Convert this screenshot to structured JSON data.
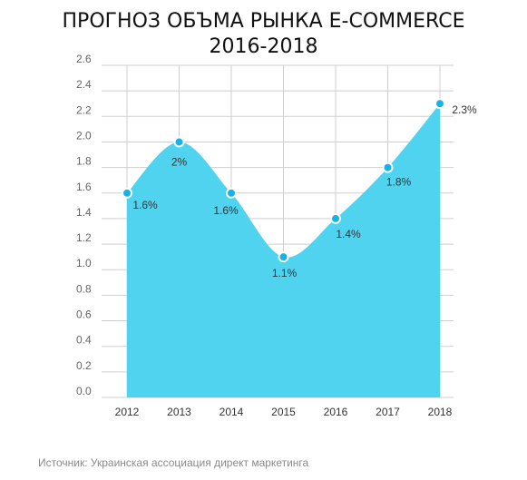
{
  "title_line1": "ПРОГНОЗ ОБЪМА РЫНКА E-COMMERCE",
  "title_line2": "2016-2018",
  "source": "Источник: Украинская ассоциация директ маркетинга",
  "colors": {
    "area_fill": "#4fd3ef",
    "point_fill": "#16b2e8",
    "grid": "#cfcfcf",
    "axis_text": "#666666",
    "label_text": "#333333"
  },
  "chart_data": {
    "type": "area",
    "title": "ПРОГНОЗ ОБЪМА РЫНКА E-COMMERCE 2016-2018",
    "xlabel": "",
    "ylabel": "",
    "categories": [
      "2012",
      "2013",
      "2014",
      "2015",
      "2016",
      "2017",
      "2018"
    ],
    "values": [
      1.6,
      2.0,
      1.6,
      1.1,
      1.4,
      1.8,
      2.3
    ],
    "data_labels": [
      "1.6%",
      "2%",
      "1.6%",
      "1.1%",
      "1.4%",
      "1.8%",
      "2.3%"
    ],
    "ylim": [
      0,
      2.6
    ],
    "yticks": [
      "0.0",
      "0.2",
      "0.4",
      "0.6",
      "0.8",
      "1.0",
      "1.2",
      "1.4",
      "1.6",
      "1.8",
      "2.0",
      "2.2",
      "2.4",
      "2.6"
    ],
    "grid": true,
    "legend": "none"
  }
}
